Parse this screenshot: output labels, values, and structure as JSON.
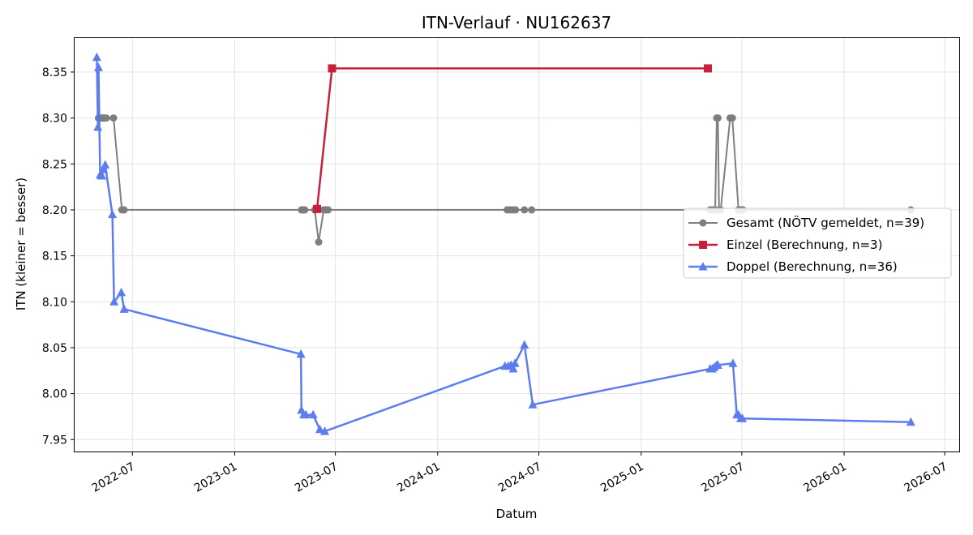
{
  "chart_data": {
    "type": "line",
    "title": "ITN-Verlauf · NU162637",
    "xlabel": "Datum",
    "ylabel": "ITN  (kleiner = besser)",
    "xlim": [
      "2022-03-19",
      "2026-07-27"
    ],
    "ylim": [
      7.937,
      8.387
    ],
    "grid": true,
    "legend_position": "right",
    "x_tick_labels": [
      "2022-07",
      "2023-01",
      "2023-07",
      "2024-01",
      "2024-07",
      "2025-01",
      "2025-07",
      "2026-01",
      "2026-07"
    ],
    "y_tick_labels": [
      "7.95",
      "8.00",
      "8.05",
      "8.10",
      "8.15",
      "8.20",
      "8.25",
      "8.30",
      "8.35"
    ],
    "series": [
      {
        "name": "Gesamt (NÖTV gemeldet, n=39)",
        "color": "#555555",
        "marker": "circle",
        "points": [
          [
            "2022-05-01",
            8.3
          ],
          [
            "2022-05-03",
            8.3
          ],
          [
            "2022-05-05",
            8.3
          ],
          [
            "2022-05-07",
            8.3
          ],
          [
            "2022-05-09",
            8.3
          ],
          [
            "2022-05-11",
            8.3
          ],
          [
            "2022-05-13",
            8.3
          ],
          [
            "2022-05-15",
            8.3
          ],
          [
            "2022-05-28",
            8.3
          ],
          [
            "2022-06-12",
            8.2
          ],
          [
            "2022-06-16",
            8.2
          ],
          [
            "2023-05-01",
            8.2
          ],
          [
            "2023-05-04",
            8.2
          ],
          [
            "2023-05-07",
            8.2
          ],
          [
            "2023-05-25",
            8.2
          ],
          [
            "2023-06-01",
            8.165
          ],
          [
            "2023-06-10",
            8.2
          ],
          [
            "2023-06-14",
            8.2
          ],
          [
            "2023-06-18",
            8.2
          ],
          [
            "2024-05-05",
            8.2
          ],
          [
            "2024-05-10",
            8.2
          ],
          [
            "2024-05-15",
            8.2
          ],
          [
            "2024-05-20",
            8.2
          ],
          [
            "2024-06-05",
            8.2
          ],
          [
            "2024-06-18",
            8.2
          ],
          [
            "2025-05-05",
            8.2
          ],
          [
            "2025-05-10",
            8.2
          ],
          [
            "2025-05-14",
            8.2
          ],
          [
            "2025-05-17",
            8.3
          ],
          [
            "2025-05-19",
            8.3
          ],
          [
            "2025-05-21",
            8.2
          ],
          [
            "2025-05-24",
            8.2
          ],
          [
            "2025-06-10",
            8.3
          ],
          [
            "2025-06-14",
            8.3
          ],
          [
            "2025-06-25",
            8.2
          ],
          [
            "2025-06-28",
            8.2
          ],
          [
            "2025-07-01",
            8.2
          ],
          [
            "2025-07-03",
            8.2
          ],
          [
            "2026-05-01",
            8.2
          ]
        ]
      },
      {
        "name": "Einzel (Berechnung, n=3)",
        "color": "#c8203c",
        "marker": "square",
        "points": [
          [
            "2023-05-29",
            8.201
          ],
          [
            "2023-06-25",
            8.354
          ],
          [
            "2025-05-01",
            8.354
          ]
        ]
      },
      {
        "name": "Doppel (Berechnung, n=36)",
        "color": "#5577ee",
        "marker": "triangle",
        "points": [
          [
            "2022-04-28",
            8.366
          ],
          [
            "2022-04-30",
            8.29
          ],
          [
            "2022-05-01",
            8.355
          ],
          [
            "2022-05-04",
            8.238
          ],
          [
            "2022-05-07",
            8.237
          ],
          [
            "2022-05-10",
            8.244
          ],
          [
            "2022-05-13",
            8.249
          ],
          [
            "2022-05-26",
            8.195
          ],
          [
            "2022-05-29",
            8.1
          ],
          [
            "2022-06-11",
            8.11
          ],
          [
            "2022-06-16",
            8.092
          ],
          [
            "2023-04-30",
            8.043
          ],
          [
            "2023-05-01",
            7.982
          ],
          [
            "2023-05-05",
            7.977
          ],
          [
            "2023-05-09",
            7.977
          ],
          [
            "2023-05-22",
            7.977
          ],
          [
            "2023-06-03",
            7.961
          ],
          [
            "2023-06-12",
            7.959
          ],
          [
            "2024-05-01",
            8.03
          ],
          [
            "2024-05-07",
            8.03
          ],
          [
            "2024-05-12",
            8.031
          ],
          [
            "2024-05-16",
            8.027
          ],
          [
            "2024-05-19",
            8.033
          ],
          [
            "2024-06-05",
            8.053
          ],
          [
            "2024-06-20",
            7.988
          ],
          [
            "2025-05-05",
            8.027
          ],
          [
            "2025-05-09",
            8.027
          ],
          [
            "2025-05-13",
            8.029
          ],
          [
            "2025-05-17",
            8.031
          ],
          [
            "2025-05-19",
            8.031
          ],
          [
            "2025-06-15",
            8.033
          ],
          [
            "2025-06-22",
            7.977
          ],
          [
            "2025-06-25",
            7.977
          ],
          [
            "2025-06-29",
            7.973
          ],
          [
            "2025-07-02",
            7.973
          ],
          [
            "2026-05-01",
            7.969
          ]
        ]
      }
    ]
  }
}
